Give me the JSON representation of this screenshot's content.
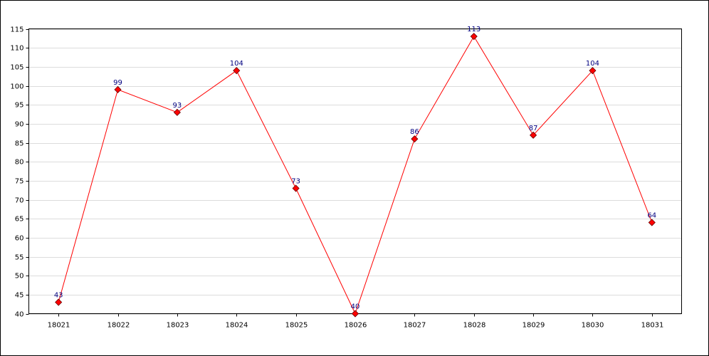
{
  "chart_data": {
    "type": "line",
    "categories": [
      "18021",
      "18022",
      "18023",
      "18024",
      "18025",
      "18026",
      "18027",
      "18028",
      "18029",
      "18030",
      "18031"
    ],
    "values": [
      43,
      99,
      93,
      104,
      73,
      40,
      86,
      113,
      87,
      104,
      64
    ],
    "color": "#ff0000",
    "label_color": "#000080",
    "ylim": [
      40,
      115
    ],
    "yticks": [
      40,
      45,
      50,
      55,
      60,
      65,
      70,
      75,
      80,
      85,
      90,
      95,
      100,
      105,
      110,
      115
    ],
    "grid": true
  }
}
